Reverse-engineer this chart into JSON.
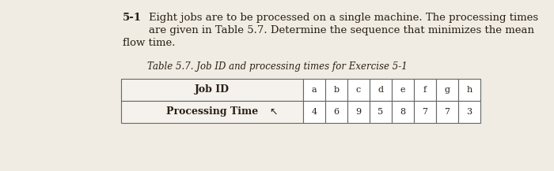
{
  "problem_number": "5-1",
  "line1": "Eight jobs are to be processed on a single machine. The processing times",
  "line2": "are given in Table 5.7. Determine the sequence that minimizes the mean",
  "line3": "flow time.",
  "table_title": "Table 5.7. Job ID and processing times for Exercise 5-1",
  "row_labels": [
    "Job ID",
    "Processing Time"
  ],
  "job_ids": [
    "a",
    "b",
    "c",
    "d",
    "e",
    "f",
    "g",
    "h"
  ],
  "processing_times": [
    "4",
    "6",
    "9",
    "5",
    "8",
    "7",
    "7",
    "3"
  ],
  "bg_color": "#f0ece4",
  "text_color": "#2a2015",
  "cell_border_color": "#666666",
  "cell_bg": "#ffffff",
  "label_bg": "#f5f2ed"
}
